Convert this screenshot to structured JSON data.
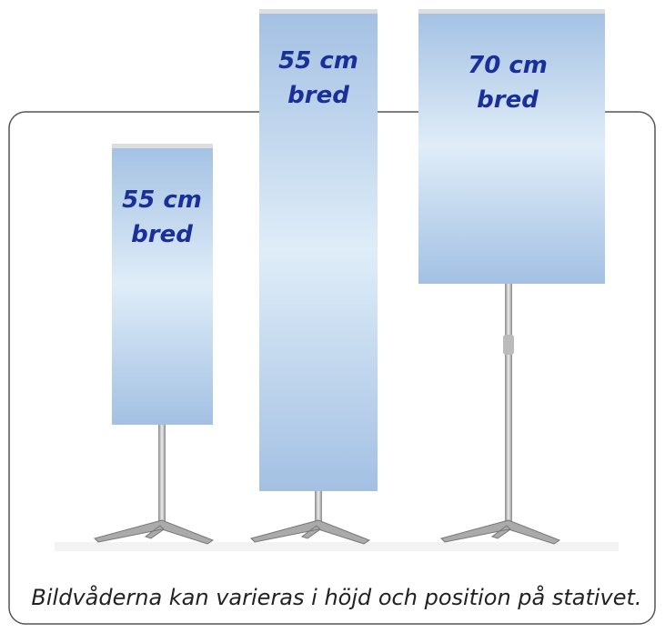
{
  "banners": [
    {
      "line1": "55 cm",
      "line2": "bred"
    },
    {
      "line1": "55 cm",
      "line2": "bred"
    },
    {
      "line1": "70 cm",
      "line2": "bred"
    }
  ],
  "caption": "Bildvåderna kan varieras i höjd och position på stativet."
}
